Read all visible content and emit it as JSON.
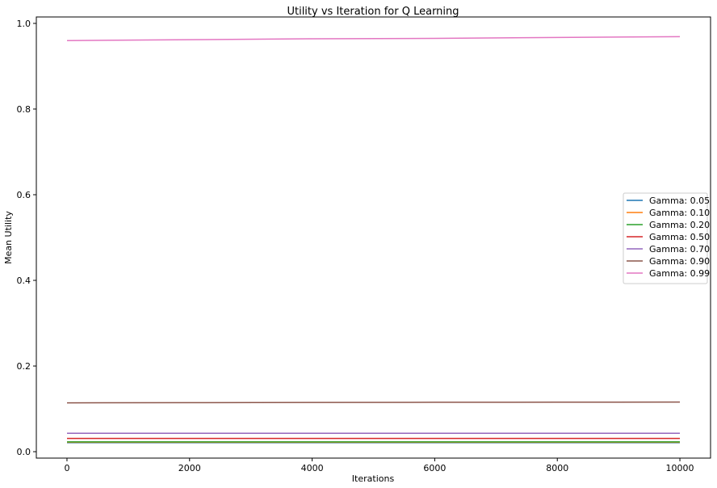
{
  "chart_data": {
    "type": "line",
    "title": "Utility vs Iteration for Q Learning",
    "xlabel": "Iterations",
    "ylabel": "Mean Utility",
    "xlim": [
      -500,
      10500
    ],
    "ylim": [
      -0.015,
      1.015
    ],
    "xticks": [
      0,
      2000,
      4000,
      6000,
      8000,
      10000
    ],
    "yticks": [
      0.0,
      0.2,
      0.4,
      0.6,
      0.8,
      1.0
    ],
    "ytick_labels": [
      "0.0",
      "0.2",
      "0.4",
      "0.6",
      "0.8",
      "1.0"
    ],
    "grid": false,
    "legend_position": "center-right",
    "x": [
      0,
      2000,
      4000,
      6000,
      8000,
      10000
    ],
    "series": [
      {
        "name": "Gamma: 0.05",
        "color": "#1f77b4",
        "values": [
          0.021,
          0.021,
          0.021,
          0.021,
          0.021,
          0.021
        ]
      },
      {
        "name": "Gamma: 0.10",
        "color": "#ff7f0e",
        "values": [
          0.022,
          0.022,
          0.022,
          0.022,
          0.022,
          0.022
        ]
      },
      {
        "name": "Gamma: 0.20",
        "color": "#2ca02c",
        "values": [
          0.023,
          0.023,
          0.023,
          0.023,
          0.023,
          0.023
        ]
      },
      {
        "name": "Gamma: 0.50",
        "color": "#d62728",
        "values": [
          0.031,
          0.031,
          0.031,
          0.031,
          0.031,
          0.031
        ]
      },
      {
        "name": "Gamma: 0.70",
        "color": "#9467bd",
        "values": [
          0.043,
          0.043,
          0.043,
          0.043,
          0.043,
          0.043
        ]
      },
      {
        "name": "Gamma: 0.90",
        "color": "#8c564b",
        "values": [
          0.114,
          0.1145,
          0.115,
          0.1153,
          0.1156,
          0.116
        ]
      },
      {
        "name": "Gamma: 0.99",
        "color": "#e377c2",
        "values": [
          0.96,
          0.962,
          0.964,
          0.965,
          0.967,
          0.969
        ]
      }
    ]
  }
}
